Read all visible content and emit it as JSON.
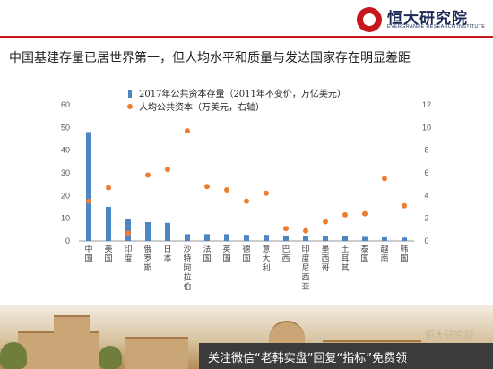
{
  "brand": {
    "name": "恒大研究院",
    "subtitle": "EVERGRANDE RESEARCH INSTITUTE",
    "accent": "#c8161d"
  },
  "headline": "中国基建存量已居世界第一，但人均水平和质量与发达国家存在明显差距",
  "chart_data": {
    "type": "bar",
    "categories": [
      "中国",
      "美国",
      "印度",
      "俄罗斯",
      "日本",
      "沙特阿拉伯",
      "法国",
      "英国",
      "德国",
      "意大利",
      "巴西",
      "印度尼西亚",
      "墨西哥",
      "土耳其",
      "泰国",
      "越南",
      "韩国"
    ],
    "series": [
      {
        "name": "2017年公共资本存量（2011年不变价，万亿美元）",
        "type": "bar",
        "axis": "left",
        "color": "#4e86c2",
        "values": [
          48,
          15,
          9.7,
          8.3,
          8,
          3,
          3,
          3,
          2.7,
          2.7,
          2.4,
          2.3,
          2.2,
          2,
          1.8,
          1.6,
          1.5
        ]
      },
      {
        "name": "人均公共资本（万美元，右轴）",
        "type": "scatter",
        "axis": "right",
        "color": "#ed7d31",
        "values": [
          3.5,
          4.7,
          0.7,
          5.8,
          6.3,
          9.7,
          4.8,
          4.5,
          3.5,
          4.2,
          1.1,
          0.9,
          1.7,
          2.3,
          2.4,
          5.5,
          3.1
        ]
      }
    ],
    "y_left": {
      "min": 0,
      "max": 60,
      "ticks": [
        "0",
        "10",
        "20",
        "30",
        "40",
        "50",
        "60"
      ]
    },
    "y_right": {
      "min": 0,
      "max": 12,
      "ticks": [
        "0",
        "2",
        "4",
        "6",
        "8",
        "10",
        "12"
      ]
    },
    "legend_position": "top",
    "grid": false
  },
  "footer": {
    "watermark": "恒大研究院",
    "banner": "关注微信“老韩实盘”回复“指标”免费领"
  }
}
